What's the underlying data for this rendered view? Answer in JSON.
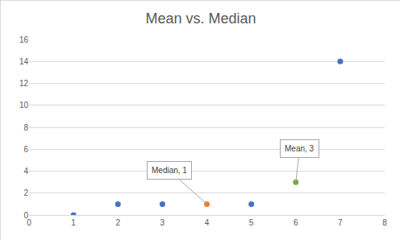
{
  "chart_data": {
    "type": "scatter",
    "title": "Mean vs. Median",
    "x": [
      1,
      2,
      3,
      4,
      5,
      6,
      7
    ],
    "values": [
      0,
      1,
      1,
      1,
      1,
      3,
      14
    ],
    "colors": [
      "#4472c4",
      "#4472c4",
      "#4472c4",
      "#ed7d31",
      "#4472c4",
      "#70ad47",
      "#4472c4"
    ],
    "xlim": [
      0,
      8
    ],
    "xticks": [
      0,
      1,
      2,
      3,
      4,
      5,
      6,
      7,
      8
    ],
    "ylim": [
      0,
      16
    ],
    "yticks": [
      0,
      2,
      4,
      6,
      8,
      10,
      12,
      14,
      16
    ],
    "grid": true,
    "annotations": [
      {
        "text": "Median, 1",
        "x": 4,
        "y": 1
      },
      {
        "text": "Mean, 3",
        "x": 6,
        "y": 3
      }
    ]
  }
}
